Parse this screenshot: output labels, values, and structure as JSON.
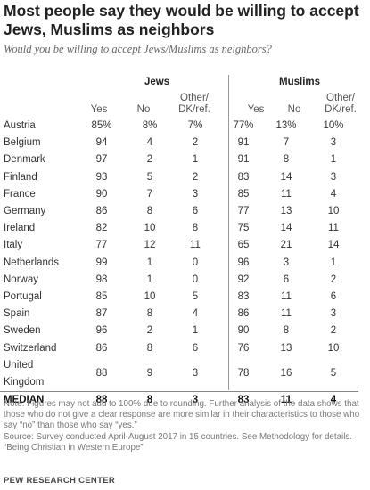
{
  "title": "Most people say they would be willing to accept Jews, Muslims as neighbors",
  "subtitle": "Would you be willing to accept Jews/Muslims as neighbors?",
  "groups": {
    "jews": "Jews",
    "muslims": "Muslims"
  },
  "columns": {
    "yes": "Yes",
    "no": "No",
    "other_line1": "Other/",
    "other_line2": "DK/ref."
  },
  "chart_data": {
    "type": "table",
    "title": "Most people say they would be willing to accept Jews, Muslims as neighbors",
    "column_groups": [
      "Jews",
      "Muslims"
    ],
    "columns": [
      "Yes",
      "No",
      "Other/ DK/ref."
    ],
    "rows": [
      {
        "country": "Austria",
        "jews": [
          "85%",
          "8%",
          "7%"
        ],
        "muslims": [
          "77%",
          "13%",
          "10%"
        ]
      },
      {
        "country": "Belgium",
        "jews": [
          "94",
          "4",
          "2"
        ],
        "muslims": [
          "91",
          "7",
          "3"
        ]
      },
      {
        "country": "Denmark",
        "jews": [
          "97",
          "2",
          "1"
        ],
        "muslims": [
          "91",
          "8",
          "1"
        ]
      },
      {
        "country": "Finland",
        "jews": [
          "93",
          "5",
          "2"
        ],
        "muslims": [
          "83",
          "14",
          "3"
        ]
      },
      {
        "country": "France",
        "jews": [
          "90",
          "7",
          "3"
        ],
        "muslims": [
          "85",
          "11",
          "4"
        ]
      },
      {
        "country": "Germany",
        "jews": [
          "86",
          "8",
          "6"
        ],
        "muslims": [
          "77",
          "13",
          "10"
        ]
      },
      {
        "country": "Ireland",
        "jews": [
          "82",
          "10",
          "8"
        ],
        "muslims": [
          "75",
          "14",
          "11"
        ]
      },
      {
        "country": "Italy",
        "jews": [
          "77",
          "12",
          "11"
        ],
        "muslims": [
          "65",
          "21",
          "14"
        ]
      },
      {
        "country": "Netherlands",
        "jews": [
          "99",
          "1",
          "0"
        ],
        "muslims": [
          "96",
          "3",
          "1"
        ]
      },
      {
        "country": "Norway",
        "jews": [
          "98",
          "1",
          "0"
        ],
        "muslims": [
          "92",
          "6",
          "2"
        ]
      },
      {
        "country": "Portugal",
        "jews": [
          "85",
          "10",
          "5"
        ],
        "muslims": [
          "83",
          "11",
          "6"
        ]
      },
      {
        "country": "Spain",
        "jews": [
          "87",
          "8",
          "4"
        ],
        "muslims": [
          "86",
          "11",
          "3"
        ]
      },
      {
        "country": "Sweden",
        "jews": [
          "96",
          "2",
          "1"
        ],
        "muslims": [
          "90",
          "8",
          "2"
        ]
      },
      {
        "country": "Switzerland",
        "jews": [
          "86",
          "8",
          "6"
        ],
        "muslims": [
          "76",
          "13",
          "10"
        ]
      },
      {
        "country": "United Kingdom",
        "jews": [
          "88",
          "9",
          "3"
        ],
        "muslims": [
          "78",
          "16",
          "5"
        ]
      }
    ],
    "median": {
      "country": "MEDIAN",
      "jews": [
        "88",
        "8",
        "3"
      ],
      "muslims": [
        "83",
        "11",
        "4"
      ]
    }
  },
  "notes": [
    "Note: Figures may not add to 100% due to rounding. Further analysis of the data shows that those who do not give a clear response are more similar in their characteristics to those who say “no” than those who say “yes.”",
    "Source: Survey conducted April-August 2017 in 15 countries. See Methodology for details.",
    "“Being Christian in Western Europe”"
  ],
  "brand": "PEW RESEARCH CENTER"
}
